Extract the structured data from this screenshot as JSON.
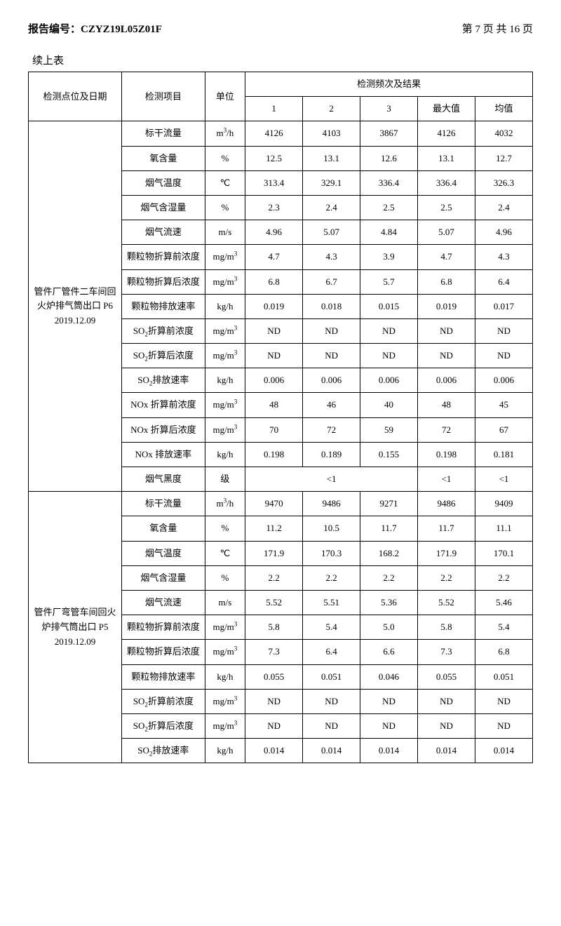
{
  "header": {
    "report_label": "报告编号：",
    "report_no": "CZYZ19L05Z01F",
    "page_text": "第 7 页 共 16 页"
  },
  "continued_label": "续上表",
  "table": {
    "head": {
      "location": "检测点位及日期",
      "item": "检测项目",
      "unit": "单位",
      "result_group": "检测频次及结果",
      "cols": [
        "1",
        "2",
        "3",
        "最大值",
        "均值"
      ]
    },
    "units": {
      "m3h": "m³/h",
      "pct": "%",
      "degc": "℃",
      "ms": "m/s",
      "mgm3": "mg/m³",
      "kgh": "kg/h",
      "level": "级"
    },
    "items": {
      "std_flow": "标干流量",
      "o2": "氧含量",
      "flue_temp": "烟气温度",
      "humidity": "烟气含湿量",
      "velocity": "烟气流速",
      "pm_pre": "颗粒物折算前浓度",
      "pm_post": "颗粒物折算后浓度",
      "pm_rate": "颗粒物排放速率",
      "so2_pre_html": "SO<sub>2</sub>折算前浓度",
      "so2_post_html": "SO<sub>2</sub>折算后浓度",
      "so2_rate_html": "SO<sub>2</sub>排放速率",
      "nox_pre": "NOx 折算前浓度",
      "nox_post": "NOx 折算后浓度",
      "nox_rate": "NOx 排放速率",
      "smoke": "烟气黑度"
    },
    "sections": [
      {
        "location_html": "管件厂管件二车间回火炉排气筒出口 P6<br>2019.12.09",
        "rows": [
          {
            "item_key": "std_flow",
            "unit_key": "m3h",
            "v": [
              "4126",
              "4103",
              "3867",
              "4126",
              "4032"
            ]
          },
          {
            "item_key": "o2",
            "unit_key": "pct",
            "v": [
              "12.5",
              "13.1",
              "12.6",
              "13.1",
              "12.7"
            ]
          },
          {
            "item_key": "flue_temp",
            "unit_key": "degc",
            "v": [
              "313.4",
              "329.1",
              "336.4",
              "336.4",
              "326.3"
            ]
          },
          {
            "item_key": "humidity",
            "unit_key": "pct",
            "v": [
              "2.3",
              "2.4",
              "2.5",
              "2.5",
              "2.4"
            ]
          },
          {
            "item_key": "velocity",
            "unit_key": "ms",
            "v": [
              "4.96",
              "5.07",
              "4.84",
              "5.07",
              "4.96"
            ]
          },
          {
            "item_key": "pm_pre",
            "unit_key": "mgm3",
            "v": [
              "4.7",
              "4.3",
              "3.9",
              "4.7",
              "4.3"
            ]
          },
          {
            "item_key": "pm_post",
            "unit_key": "mgm3",
            "v": [
              "6.8",
              "6.7",
              "5.7",
              "6.8",
              "6.4"
            ]
          },
          {
            "item_key": "pm_rate",
            "unit_key": "kgh",
            "v": [
              "0.019",
              "0.018",
              "0.015",
              "0.019",
              "0.017"
            ]
          },
          {
            "item_key": "so2_pre_html",
            "unit_key": "mgm3",
            "v": [
              "ND",
              "ND",
              "ND",
              "ND",
              "ND"
            ]
          },
          {
            "item_key": "so2_post_html",
            "unit_key": "mgm3",
            "v": [
              "ND",
              "ND",
              "ND",
              "ND",
              "ND"
            ]
          },
          {
            "item_key": "so2_rate_html",
            "unit_key": "kgh",
            "v": [
              "0.006",
              "0.006",
              "0.006",
              "0.006",
              "0.006"
            ]
          },
          {
            "item_key": "nox_pre",
            "unit_key": "mgm3",
            "v": [
              "48",
              "46",
              "40",
              "48",
              "45"
            ]
          },
          {
            "item_key": "nox_post",
            "unit_key": "mgm3",
            "v": [
              "70",
              "72",
              "59",
              "72",
              "67"
            ]
          },
          {
            "item_key": "nox_rate",
            "unit_key": "kgh",
            "v": [
              "0.198",
              "0.189",
              "0.155",
              "0.198",
              "0.181"
            ]
          },
          {
            "item_key": "smoke",
            "unit_key": "level",
            "merged123": "<1",
            "max": "<1",
            "avg": "<1"
          }
        ]
      },
      {
        "location_html": "管件厂弯管车间回火炉排气筒出口 P5<br>2019.12.09",
        "rows": [
          {
            "item_key": "std_flow",
            "unit_key": "m3h",
            "v": [
              "9470",
              "9486",
              "9271",
              "9486",
              "9409"
            ]
          },
          {
            "item_key": "o2",
            "unit_key": "pct",
            "v": [
              "11.2",
              "10.5",
              "11.7",
              "11.7",
              "11.1"
            ]
          },
          {
            "item_key": "flue_temp",
            "unit_key": "degc",
            "v": [
              "171.9",
              "170.3",
              "168.2",
              "171.9",
              "170.1"
            ]
          },
          {
            "item_key": "humidity",
            "unit_key": "pct",
            "v": [
              "2.2",
              "2.2",
              "2.2",
              "2.2",
              "2.2"
            ]
          },
          {
            "item_key": "velocity",
            "unit_key": "ms",
            "v": [
              "5.52",
              "5.51",
              "5.36",
              "5.52",
              "5.46"
            ]
          },
          {
            "item_key": "pm_pre",
            "unit_key": "mgm3",
            "v": [
              "5.8",
              "5.4",
              "5.0",
              "5.8",
              "5.4"
            ]
          },
          {
            "item_key": "pm_post",
            "unit_key": "mgm3",
            "v": [
              "7.3",
              "6.4",
              "6.6",
              "7.3",
              "6.8"
            ]
          },
          {
            "item_key": "pm_rate",
            "unit_key": "kgh",
            "v": [
              "0.055",
              "0.051",
              "0.046",
              "0.055",
              "0.051"
            ]
          },
          {
            "item_key": "so2_pre_html",
            "unit_key": "mgm3",
            "v": [
              "ND",
              "ND",
              "ND",
              "ND",
              "ND"
            ]
          },
          {
            "item_key": "so2_post_html",
            "unit_key": "mgm3",
            "v": [
              "ND",
              "ND",
              "ND",
              "ND",
              "ND"
            ]
          },
          {
            "item_key": "so2_rate_html",
            "unit_key": "kgh",
            "v": [
              "0.014",
              "0.014",
              "0.014",
              "0.014",
              "0.014"
            ]
          }
        ]
      }
    ]
  }
}
